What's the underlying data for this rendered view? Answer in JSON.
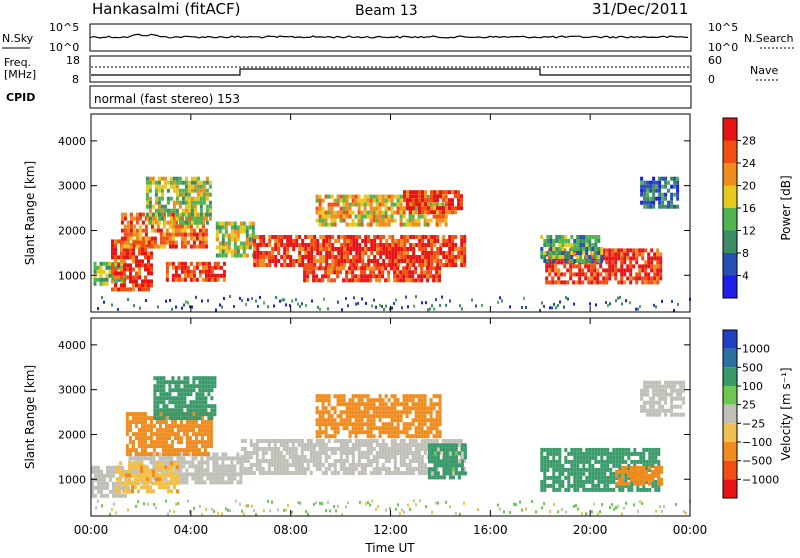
{
  "header": {
    "station": "Hankasalmi (fitACF)",
    "beam": "Beam 13",
    "date": "31/Dec/2011"
  },
  "status_panels": {
    "nsky_label": "N.Sky",
    "nsearch_label": "N.Search",
    "noise_ticks_left": [
      "10^5",
      "10^0"
    ],
    "noise_ticks_right": [
      "10^5",
      "10^0"
    ],
    "freq_label_line1": "Freq.",
    "freq_label_line2": "[MHz]",
    "freq_ticks": [
      "18",
      "8"
    ],
    "nave_label": "Nave",
    "nave_ticks": [
      "60",
      "0"
    ],
    "cpid_label": "CPID",
    "cpid_text": "normal (fast stereo) 153"
  },
  "colors": {
    "power_scale": [
      "#1e1ee6",
      "#2850b4",
      "#3c8c64",
      "#50b450",
      "#e6c81e",
      "#f08c1e",
      "#f05014",
      "#e61414"
    ],
    "velocity_scale": [
      "#2040c0",
      "#2a70a0",
      "#3a9a6a",
      "#6cc850",
      "#c0c0b8",
      "#f0c050",
      "#f08c1e",
      "#f05014",
      "#e61414"
    ]
  },
  "chart_data": [
    {
      "type": "heatmap",
      "name": "power",
      "ylabel": "Slant Range [km]",
      "ylim": [
        180,
        4600
      ],
      "yticks": [
        "1000",
        "2000",
        "3000",
        "4000"
      ],
      "ytick_values": [
        1000,
        2000,
        3000,
        4000
      ],
      "xlim_hours": [
        0,
        24
      ],
      "xticks": [
        "00:00",
        "04:00",
        "08:00",
        "12:00",
        "16:00",
        "20:00",
        "00:00"
      ],
      "colorbar": {
        "label": "Power [dB]",
        "ticks": [
          "4",
          "8",
          "12",
          "16",
          "20",
          "24",
          "28"
        ],
        "range": [
          0,
          32
        ]
      },
      "regions": [
        {
          "t0": 0.1,
          "t1": 1.4,
          "r0": 800,
          "r1": 1300,
          "value": 14
        },
        {
          "t0": 0.8,
          "t1": 2.4,
          "r0": 700,
          "r1": 1800,
          "value": 28
        },
        {
          "t0": 1.2,
          "t1": 4.6,
          "r0": 1600,
          "r1": 2400,
          "value": 24
        },
        {
          "t0": 2.2,
          "t1": 4.8,
          "r0": 2200,
          "r1": 3200,
          "value": 16
        },
        {
          "t0": 3.0,
          "t1": 5.4,
          "r0": 900,
          "r1": 1300,
          "value": 28
        },
        {
          "t0": 5.0,
          "t1": 6.5,
          "r0": 1400,
          "r1": 2200,
          "value": 16
        },
        {
          "t0": 6.5,
          "t1": 15.0,
          "r0": 1200,
          "r1": 1900,
          "value": 28
        },
        {
          "t0": 8.5,
          "t1": 14.0,
          "r0": 900,
          "r1": 1200,
          "value": 28
        },
        {
          "t0": 9.0,
          "t1": 14.2,
          "r0": 2100,
          "r1": 2800,
          "value": 20
        },
        {
          "t0": 12.5,
          "t1": 14.8,
          "r0": 2400,
          "r1": 2900,
          "value": 28
        },
        {
          "t0": 18.2,
          "t1": 22.8,
          "r0": 800,
          "r1": 1600,
          "value": 28
        },
        {
          "t0": 18.0,
          "t1": 20.5,
          "r0": 1300,
          "r1": 1900,
          "value": 12
        },
        {
          "t0": 22.0,
          "t1": 23.5,
          "r0": 2500,
          "r1": 3200,
          "value": 8
        }
      ]
    },
    {
      "type": "heatmap",
      "name": "velocity",
      "ylabel": "Slant Range [km]",
      "xlabel": "Time UT",
      "ylim": [
        180,
        4600
      ],
      "yticks": [
        "1000",
        "2000",
        "3000",
        "4000"
      ],
      "ytick_values": [
        1000,
        2000,
        3000,
        4000
      ],
      "xlim_hours": [
        0,
        24
      ],
      "xticks": [
        "00:00",
        "04:00",
        "08:00",
        "12:00",
        "16:00",
        "20:00",
        "00:00"
      ],
      "colorbar": {
        "label": "Velocity [m s⁻¹]",
        "ticks": [
          "1000",
          "500",
          "100",
          "25",
          "−25",
          "−100",
          "−500",
          "−1000"
        ]
      },
      "regions": [
        {
          "t0": 0.0,
          "t1": 1.5,
          "r0": 600,
          "r1": 1300,
          "value": 0
        },
        {
          "t0": 1.5,
          "t1": 6.0,
          "r0": 900,
          "r1": 1600,
          "value": 0
        },
        {
          "t0": 1.0,
          "t1": 3.5,
          "r0": 700,
          "r1": 1400,
          "value": -80
        },
        {
          "t0": 1.4,
          "t1": 4.8,
          "r0": 1600,
          "r1": 2500,
          "value": -300
        },
        {
          "t0": 2.5,
          "t1": 5.0,
          "r0": 2400,
          "r1": 3300,
          "value": 300
        },
        {
          "t0": 6.0,
          "t1": 15.0,
          "r0": 1100,
          "r1": 1900,
          "value": 0
        },
        {
          "t0": 9.0,
          "t1": 14.0,
          "r0": 2000,
          "r1": 2900,
          "value": -200
        },
        {
          "t0": 13.5,
          "t1": 15.0,
          "r0": 1000,
          "r1": 1800,
          "value": 150
        },
        {
          "t0": 18.0,
          "t1": 22.8,
          "r0": 800,
          "r1": 1700,
          "value": 300
        },
        {
          "t0": 21.0,
          "t1": 22.9,
          "r0": 900,
          "r1": 1300,
          "value": -300
        },
        {
          "t0": 22.0,
          "t1": 23.8,
          "r0": 2400,
          "r1": 3200,
          "value": 0
        }
      ]
    }
  ]
}
